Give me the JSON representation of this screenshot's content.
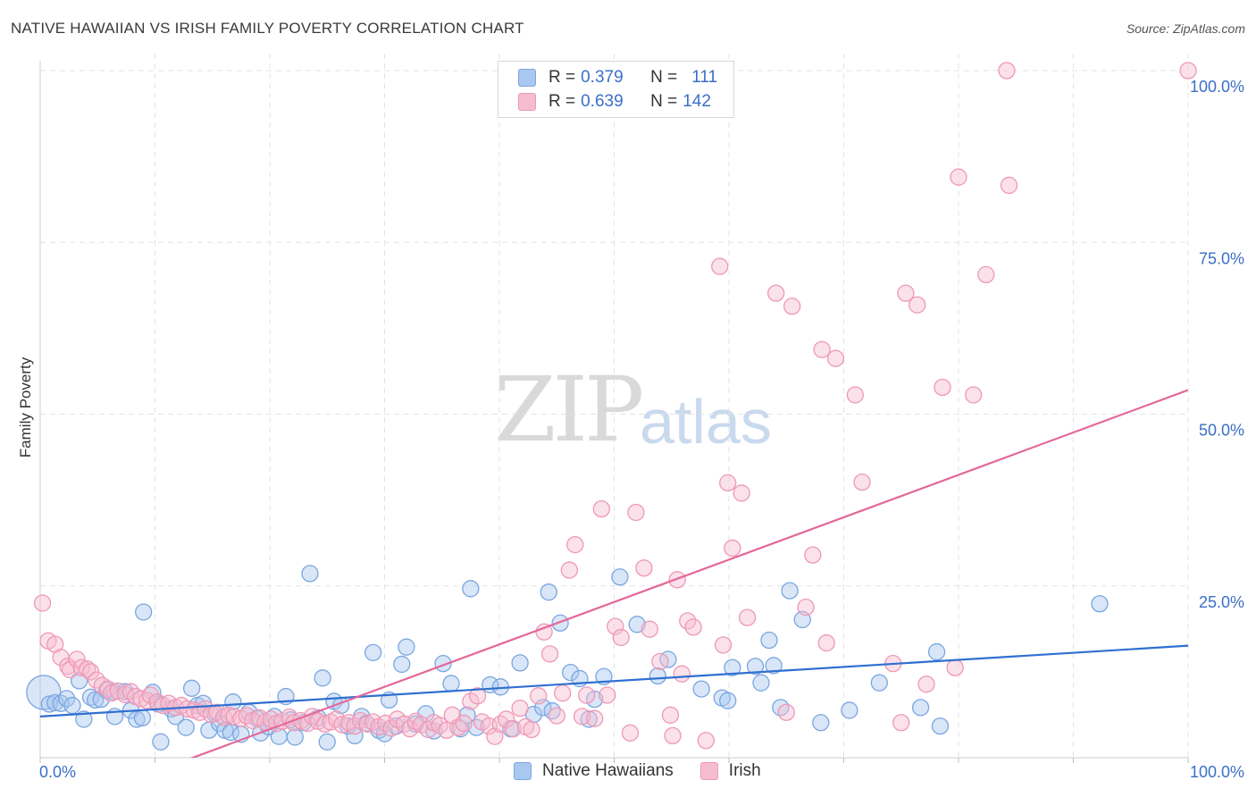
{
  "title": "NATIVE HAWAIIAN VS IRISH FAMILY POVERTY CORRELATION CHART",
  "source": "Source: ZipAtlas.com",
  "watermark": {
    "zip": "ZIP",
    "atlas": "atlas"
  },
  "colors": {
    "blue_fill": "#a9c8ef",
    "blue_stroke": "#7aa6e0",
    "blue_line": "#2f6fd1",
    "pink_fill": "#f6bcd0",
    "pink_stroke": "#ee98b5",
    "pink_line": "#e4679a",
    "tick_label": "#3a6fc8",
    "grid": "#e3e3e3"
  },
  "legend": {
    "rows": [
      {
        "r_label": "R = ",
        "r_value": "0.379",
        "n_label": "N = ",
        "n_value": "111",
        "color": "blue"
      },
      {
        "r_label": "R = ",
        "r_value": "0.639",
        "n_label": "N = ",
        "n_value": "142",
        "color": "pink"
      }
    ]
  },
  "bottom_legend": [
    "Native Hawaiians",
    "Irish"
  ],
  "chart_data": {
    "type": "scatter",
    "title": "NATIVE HAWAIIAN VS IRISH FAMILY POVERTY CORRELATION CHART",
    "xlabel": "",
    "ylabel": "Family Poverty",
    "xlim": [
      0,
      100
    ],
    "ylim": [
      0,
      100
    ],
    "x_tick_labels": [
      "0.0%",
      "100.0%"
    ],
    "y_tick_values": [
      25,
      50,
      75,
      100
    ],
    "y_tick_labels": [
      "25.0%",
      "50.0%",
      "75.0%",
      "100.0%"
    ],
    "grid": true,
    "legend_position": "top-center",
    "series": [
      {
        "name": "Native Hawaiians",
        "color": "#a9c8ef",
        "r": 0.379,
        "n": 111,
        "trend": {
          "x": [
            0,
            100
          ],
          "y": [
            6.0,
            16.3
          ]
        },
        "points": [
          [
            0.3,
            9.5
          ],
          [
            0.8,
            7.8
          ],
          [
            1.3,
            8.0
          ],
          [
            1.8,
            7.9
          ],
          [
            2.3,
            8.6
          ],
          [
            2.8,
            7.6
          ],
          [
            3.4,
            11.2
          ],
          [
            3.8,
            5.6
          ],
          [
            4.4,
            8.8
          ],
          [
            4.8,
            8.4
          ],
          [
            5.3,
            8.5
          ],
          [
            5.8,
            9.8
          ],
          [
            6.4,
            9.6
          ],
          [
            6.5,
            6.0
          ],
          [
            7.4,
            9.6
          ],
          [
            7.9,
            6.9
          ],
          [
            8.4,
            5.6
          ],
          [
            8.9,
            5.8
          ],
          [
            9.0,
            21.2
          ],
          [
            9.8,
            9.5
          ],
          [
            10.3,
            7.8
          ],
          [
            10.5,
            2.3
          ],
          [
            11.4,
            7.1
          ],
          [
            11.8,
            6.0
          ],
          [
            12.7,
            4.4
          ],
          [
            13.2,
            10.1
          ],
          [
            13.7,
            7.6
          ],
          [
            14.2,
            7.9
          ],
          [
            14.7,
            4.0
          ],
          [
            15.2,
            6.4
          ],
          [
            15.6,
            5.0
          ],
          [
            16.1,
            4.0
          ],
          [
            16.6,
            3.7
          ],
          [
            16.8,
            8.1
          ],
          [
            17.5,
            3.4
          ],
          [
            18.2,
            6.6
          ],
          [
            18.9,
            5.7
          ],
          [
            19.2,
            3.6
          ],
          [
            19.9,
            4.5
          ],
          [
            20.4,
            6.0
          ],
          [
            20.8,
            3.1
          ],
          [
            21.4,
            8.9
          ],
          [
            21.8,
            5.5
          ],
          [
            22.2,
            3.0
          ],
          [
            22.9,
            5.1
          ],
          [
            23.5,
            26.8
          ],
          [
            24.2,
            5.8
          ],
          [
            24.6,
            11.6
          ],
          [
            25.0,
            2.3
          ],
          [
            25.6,
            8.2
          ],
          [
            26.2,
            7.6
          ],
          [
            26.8,
            4.6
          ],
          [
            27.4,
            3.2
          ],
          [
            28.0,
            6.0
          ],
          [
            28.4,
            5.0
          ],
          [
            29.0,
            15.3
          ],
          [
            29.5,
            4.0
          ],
          [
            30.0,
            3.5
          ],
          [
            30.4,
            8.4
          ],
          [
            31.0,
            4.6
          ],
          [
            31.5,
            13.6
          ],
          [
            31.9,
            16.1
          ],
          [
            32.7,
            4.9
          ],
          [
            33.6,
            6.4
          ],
          [
            34.3,
            3.9
          ],
          [
            35.1,
            13.7
          ],
          [
            35.8,
            10.8
          ],
          [
            36.6,
            4.2
          ],
          [
            37.2,
            6.2
          ],
          [
            37.5,
            24.6
          ],
          [
            38.0,
            4.4
          ],
          [
            39.2,
            10.6
          ],
          [
            40.1,
            10.3
          ],
          [
            41.0,
            4.2
          ],
          [
            41.8,
            13.8
          ],
          [
            43.0,
            6.3
          ],
          [
            43.8,
            7.3
          ],
          [
            44.3,
            24.1
          ],
          [
            44.6,
            6.8
          ],
          [
            45.3,
            19.6
          ],
          [
            46.2,
            12.4
          ],
          [
            47.0,
            11.5
          ],
          [
            47.8,
            5.6
          ],
          [
            48.3,
            8.5
          ],
          [
            49.1,
            11.8
          ],
          [
            50.5,
            26.3
          ],
          [
            52.0,
            19.4
          ],
          [
            53.8,
            11.9
          ],
          [
            54.7,
            14.3
          ],
          [
            57.6,
            10.0
          ],
          [
            59.4,
            8.7
          ],
          [
            59.9,
            8.3
          ],
          [
            60.3,
            13.1
          ],
          [
            62.3,
            13.3
          ],
          [
            62.8,
            10.9
          ],
          [
            63.5,
            17.1
          ],
          [
            63.9,
            13.4
          ],
          [
            64.5,
            7.3
          ],
          [
            65.3,
            24.3
          ],
          [
            66.4,
            20.1
          ],
          [
            68.0,
            5.1
          ],
          [
            70.5,
            6.9
          ],
          [
            73.1,
            10.9
          ],
          [
            76.7,
            7.3
          ],
          [
            78.1,
            15.4
          ],
          [
            78.4,
            4.6
          ],
          [
            92.3,
            22.4
          ]
        ]
      },
      {
        "name": "Irish",
        "color": "#f6bcd0",
        "r": 0.639,
        "n": 142,
        "trend": {
          "x": [
            0,
            100
          ],
          "y": [
            -8.2,
            53.5
          ]
        },
        "points": [
          [
            0.2,
            22.5
          ],
          [
            0.7,
            17.0
          ],
          [
            1.3,
            16.5
          ],
          [
            1.8,
            14.6
          ],
          [
            2.4,
            13.3
          ],
          [
            2.6,
            12.8
          ],
          [
            3.2,
            14.3
          ],
          [
            3.6,
            13.1
          ],
          [
            4.1,
            12.9
          ],
          [
            4.4,
            12.5
          ],
          [
            4.9,
            11.3
          ],
          [
            5.4,
            10.5
          ],
          [
            5.9,
            10.0
          ],
          [
            6.2,
            9.4
          ],
          [
            6.8,
            9.7
          ],
          [
            7.4,
            9.2
          ],
          [
            7.9,
            9.6
          ],
          [
            8.3,
            8.9
          ],
          [
            8.8,
            8.6
          ],
          [
            9.3,
            8.3
          ],
          [
            9.6,
            9.1
          ],
          [
            10.2,
            8.1
          ],
          [
            10.7,
            7.6
          ],
          [
            11.2,
            7.9
          ],
          [
            11.8,
            7.3
          ],
          [
            12.3,
            7.6
          ],
          [
            12.8,
            7.1
          ],
          [
            13.4,
            6.9
          ],
          [
            13.9,
            6.6
          ],
          [
            14.4,
            7.1
          ],
          [
            14.9,
            6.3
          ],
          [
            15.4,
            6.6
          ],
          [
            16.0,
            5.9
          ],
          [
            16.4,
            6.2
          ],
          [
            16.9,
            6.0
          ],
          [
            17.5,
            5.7
          ],
          [
            18.0,
            6.1
          ],
          [
            18.5,
            5.4
          ],
          [
            19.1,
            5.8
          ],
          [
            19.6,
            5.2
          ],
          [
            20.1,
            5.6
          ],
          [
            20.6,
            5.0
          ],
          [
            21.1,
            5.3
          ],
          [
            21.7,
            5.9
          ],
          [
            22.1,
            5.1
          ],
          [
            22.7,
            5.4
          ],
          [
            23.3,
            5.0
          ],
          [
            23.7,
            6.0
          ],
          [
            24.2,
            5.3
          ],
          [
            24.8,
            4.9
          ],
          [
            25.3,
            5.2
          ],
          [
            25.8,
            5.6
          ],
          [
            26.3,
            4.8
          ],
          [
            26.9,
            5.1
          ],
          [
            27.4,
            4.6
          ],
          [
            27.9,
            5.4
          ],
          [
            28.5,
            4.9
          ],
          [
            29.0,
            5.2
          ],
          [
            29.5,
            4.5
          ],
          [
            30.1,
            5.0
          ],
          [
            30.6,
            4.3
          ],
          [
            31.1,
            5.6
          ],
          [
            31.7,
            4.9
          ],
          [
            32.2,
            4.2
          ],
          [
            32.7,
            5.3
          ],
          [
            33.2,
            4.8
          ],
          [
            33.8,
            4.1
          ],
          [
            34.3,
            5.1
          ],
          [
            34.8,
            4.7
          ],
          [
            35.4,
            4.0
          ],
          [
            35.9,
            6.2
          ],
          [
            36.4,
            4.4
          ],
          [
            36.9,
            5.0
          ],
          [
            37.5,
            8.2
          ],
          [
            38.1,
            9.0
          ],
          [
            38.5,
            5.2
          ],
          [
            39.1,
            4.6
          ],
          [
            39.6,
            3.1
          ],
          [
            40.1,
            4.9
          ],
          [
            40.6,
            5.6
          ],
          [
            41.2,
            4.2
          ],
          [
            41.8,
            7.2
          ],
          [
            42.3,
            4.5
          ],
          [
            42.8,
            4.1
          ],
          [
            43.4,
            9.0
          ],
          [
            43.9,
            18.3
          ],
          [
            44.4,
            15.1
          ],
          [
            45.0,
            6.1
          ],
          [
            45.5,
            9.4
          ],
          [
            46.1,
            27.3
          ],
          [
            46.6,
            31.0
          ],
          [
            47.2,
            6.0
          ],
          [
            47.6,
            9.1
          ],
          [
            48.3,
            5.7
          ],
          [
            48.9,
            36.2
          ],
          [
            49.4,
            9.1
          ],
          [
            50.1,
            19.1
          ],
          [
            50.6,
            17.5
          ],
          [
            51.4,
            3.6
          ],
          [
            51.9,
            35.7
          ],
          [
            52.6,
            27.6
          ],
          [
            53.1,
            18.7
          ],
          [
            54.0,
            14.0
          ],
          [
            54.9,
            6.2
          ],
          [
            55.1,
            3.2
          ],
          [
            55.5,
            25.9
          ],
          [
            55.9,
            12.2
          ],
          [
            56.4,
            19.9
          ],
          [
            56.9,
            19.0
          ],
          [
            58.0,
            2.5
          ],
          [
            59.2,
            71.5
          ],
          [
            59.5,
            16.4
          ],
          [
            59.9,
            40.0
          ],
          [
            60.3,
            30.5
          ],
          [
            61.1,
            38.5
          ],
          [
            61.6,
            20.4
          ],
          [
            64.1,
            67.6
          ],
          [
            65.0,
            6.6
          ],
          [
            65.5,
            65.7
          ],
          [
            66.7,
            21.9
          ],
          [
            67.3,
            29.5
          ],
          [
            68.1,
            59.4
          ],
          [
            68.5,
            16.7
          ],
          [
            69.3,
            58.1
          ],
          [
            71.0,
            52.8
          ],
          [
            71.6,
            40.1
          ],
          [
            74.3,
            13.7
          ],
          [
            75.0,
            5.1
          ],
          [
            75.4,
            67.6
          ],
          [
            76.4,
            65.9
          ],
          [
            77.2,
            10.7
          ],
          [
            78.6,
            53.9
          ],
          [
            79.7,
            13.1
          ],
          [
            80.0,
            84.5
          ],
          [
            81.3,
            52.8
          ],
          [
            82.4,
            70.3
          ],
          [
            84.2,
            100.0
          ],
          [
            84.4,
            83.3
          ],
          [
            100.0,
            100.0
          ]
        ]
      }
    ]
  }
}
